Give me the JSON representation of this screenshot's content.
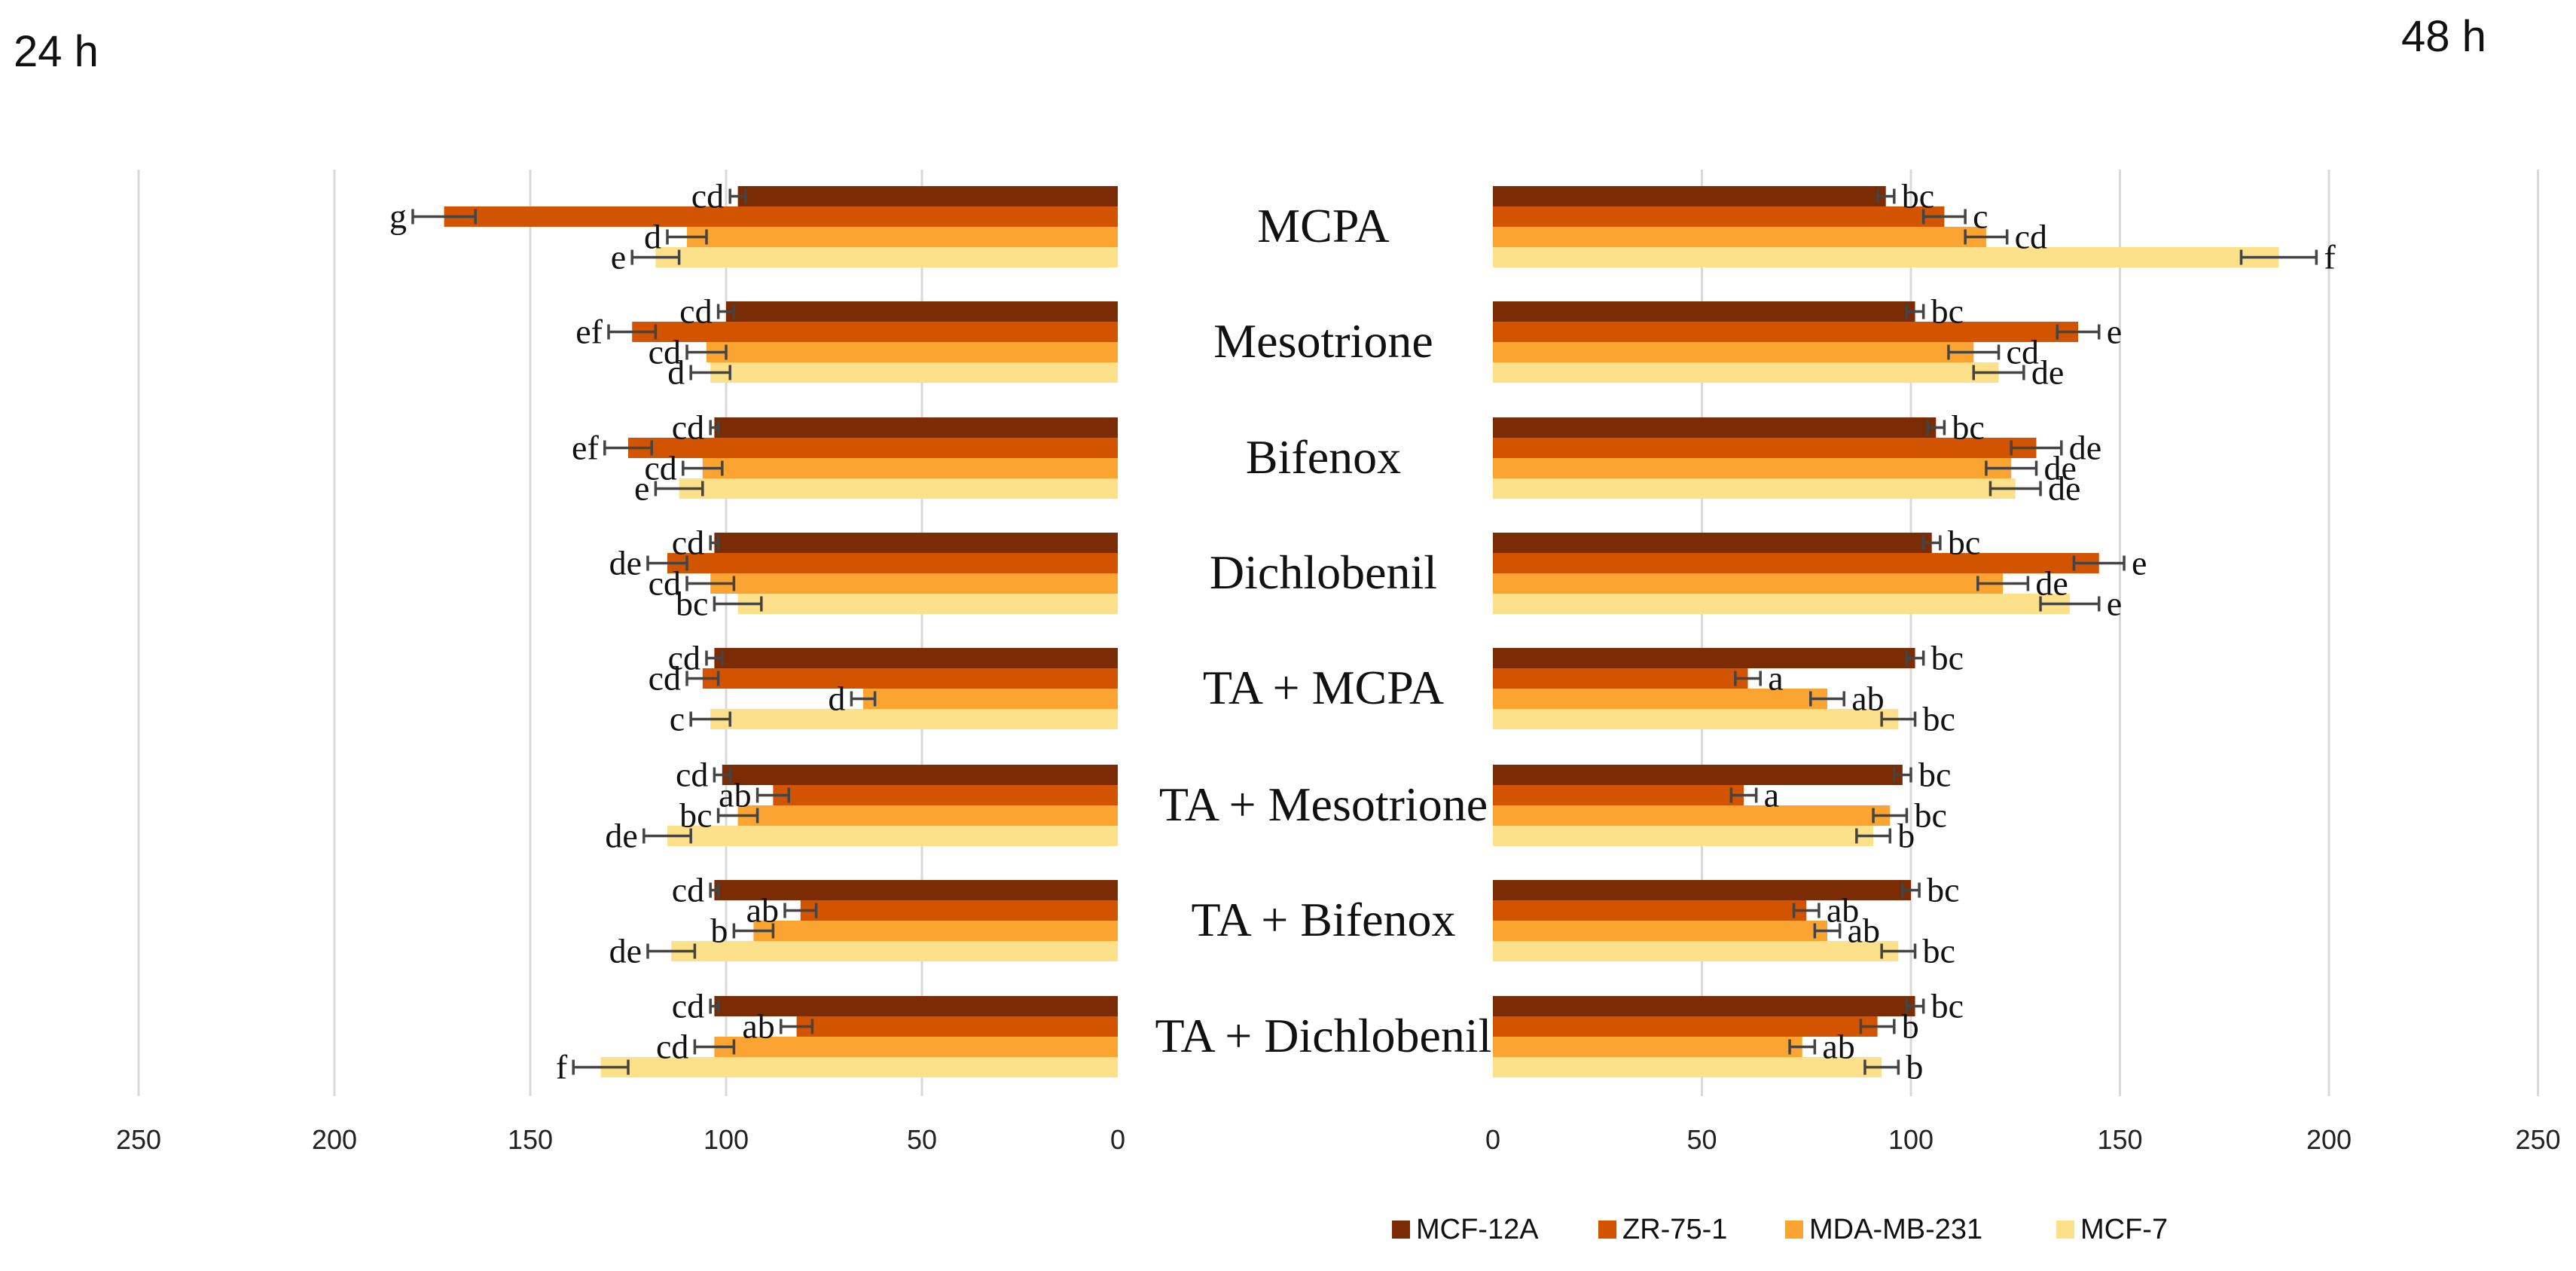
{
  "chart_data": {
    "type": "bar",
    "orientation": "horizontal",
    "layout": "butterfly",
    "categories": [
      "MCPA",
      "Mesotrione",
      "Bifenox",
      "Dichlobenil",
      "TA + MCPA",
      "TA + Mesotrione",
      "TA + Bifenox",
      "TA + Dichlobenil"
    ],
    "series": [
      {
        "name": "MCF-12A",
        "color": "#7b2c05"
      },
      {
        "name": "ZR-75-1",
        "color": "#d35400"
      },
      {
        "name": "MDA-MB-231",
        "color": "#fba431"
      },
      {
        "name": "MCF-7",
        "color": "#fde08a"
      }
    ],
    "panels": [
      {
        "title": "24 h",
        "xlim": [
          0,
          250
        ],
        "ticks": [
          250,
          200,
          150,
          100,
          50,
          0
        ],
        "values": [
          [
            97,
            172,
            110,
            118
          ],
          [
            100,
            124,
            105,
            104
          ],
          [
            103,
            125,
            106,
            112
          ],
          [
            103,
            115,
            104,
            97
          ],
          [
            103,
            106,
            65,
            104
          ],
          [
            101,
            88,
            97,
            115
          ],
          [
            103,
            81,
            93,
            114
          ],
          [
            103,
            82,
            103,
            132
          ]
        ],
        "errors": [
          [
            2,
            8,
            5,
            6
          ],
          [
            2,
            6,
            5,
            5
          ],
          [
            1,
            6,
            5,
            6
          ],
          [
            1,
            5,
            6,
            6
          ],
          [
            2,
            4,
            3,
            5
          ],
          [
            2,
            4,
            5,
            6
          ],
          [
            1,
            4,
            5,
            6
          ],
          [
            1,
            4,
            5,
            7
          ]
        ],
        "labels": [
          [
            "cd",
            "g",
            "d",
            "e"
          ],
          [
            "cd",
            "ef",
            "cd",
            "d"
          ],
          [
            "cd",
            "ef",
            "cd",
            "e"
          ],
          [
            "cd",
            "de",
            "cd",
            "bc"
          ],
          [
            "cd",
            "cd",
            "d",
            "c"
          ],
          [
            "cd",
            "ab",
            "bc",
            "de"
          ],
          [
            "cd",
            "ab",
            "b",
            "de"
          ],
          [
            "cd",
            "ab",
            "cd",
            "f"
          ]
        ]
      },
      {
        "title": "48 h",
        "xlim": [
          0,
          250
        ],
        "ticks": [
          0,
          50,
          100,
          150,
          200,
          250
        ],
        "values": [
          [
            94,
            108,
            118,
            188
          ],
          [
            101,
            140,
            115,
            121
          ],
          [
            106,
            130,
            124,
            125
          ],
          [
            105,
            145,
            122,
            138
          ],
          [
            101,
            61,
            80,
            97
          ],
          [
            98,
            60,
            95,
            91
          ],
          [
            100,
            75,
            80,
            97
          ],
          [
            101,
            92,
            74,
            93
          ]
        ],
        "errors": [
          [
            2,
            5,
            5,
            9
          ],
          [
            2,
            5,
            6,
            6
          ],
          [
            2,
            6,
            6,
            6
          ],
          [
            2,
            6,
            6,
            7
          ],
          [
            2,
            3,
            4,
            4
          ],
          [
            2,
            3,
            4,
            4
          ],
          [
            2,
            3,
            3,
            4
          ],
          [
            2,
            4,
            3,
            4
          ]
        ],
        "labels": [
          [
            "bc",
            "c",
            "cd",
            "f"
          ],
          [
            "bc",
            "e",
            "cd",
            "de"
          ],
          [
            "bc",
            "de",
            "de",
            "de"
          ],
          [
            "bc",
            "e",
            "de",
            "e"
          ],
          [
            "bc",
            "a",
            "ab",
            "bc"
          ],
          [
            "bc",
            "a",
            "bc",
            "b"
          ],
          [
            "bc",
            "ab",
            "ab",
            "bc"
          ],
          [
            "bc",
            "b",
            "ab",
            "b"
          ]
        ]
      }
    ],
    "legend_position": "bottom",
    "grid": true
  }
}
